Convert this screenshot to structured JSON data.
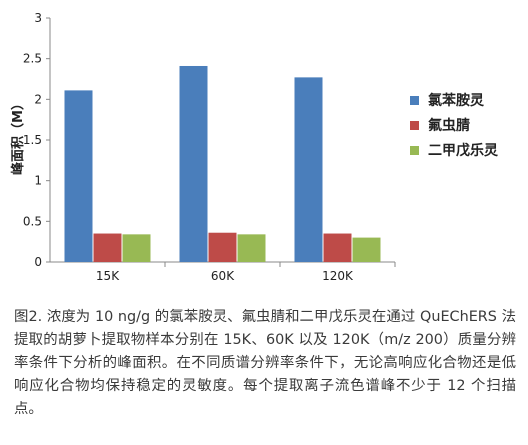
{
  "chart_data": {
    "type": "bar",
    "categories": [
      "15K",
      "60K",
      "120K"
    ],
    "series": [
      {
        "name": "氯苯胺灵",
        "color": "#4a7ebb",
        "values": [
          2.11,
          2.41,
          2.27
        ]
      },
      {
        "name": "氟虫腈",
        "color": "#be4b48",
        "values": [
          0.35,
          0.36,
          0.35
        ]
      },
      {
        "name": "二甲戊乐灵",
        "color": "#98b954",
        "values": [
          0.34,
          0.34,
          0.3
        ]
      }
    ],
    "ylabel": "峰面积（M）",
    "ylim": [
      0,
      3
    ],
    "yticks": [
      "0",
      "0.5",
      "1",
      "1.5",
      "2",
      "2.5",
      "3"
    ],
    "ytick_values": [
      0,
      0.5,
      1,
      1.5,
      2,
      2.5,
      3
    ],
    "grid": false,
    "legend_position": "right"
  },
  "caption": "图2. 浓度为 10 ng/g 的氯苯胺灵、氟虫腈和二甲戊乐灵在通过 QuEChERS 法提取的胡萝卜提取物样本分别在 15K、60K 以及 120K（m/z 200）质量分辨率条件下分析的峰面积。在不同质谱分辨率条件下，无论高响应化合物还是低响应化合物均保持稳定的灵敏度。每个提取离子流色谱峰不少于 12 个扫描点。"
}
